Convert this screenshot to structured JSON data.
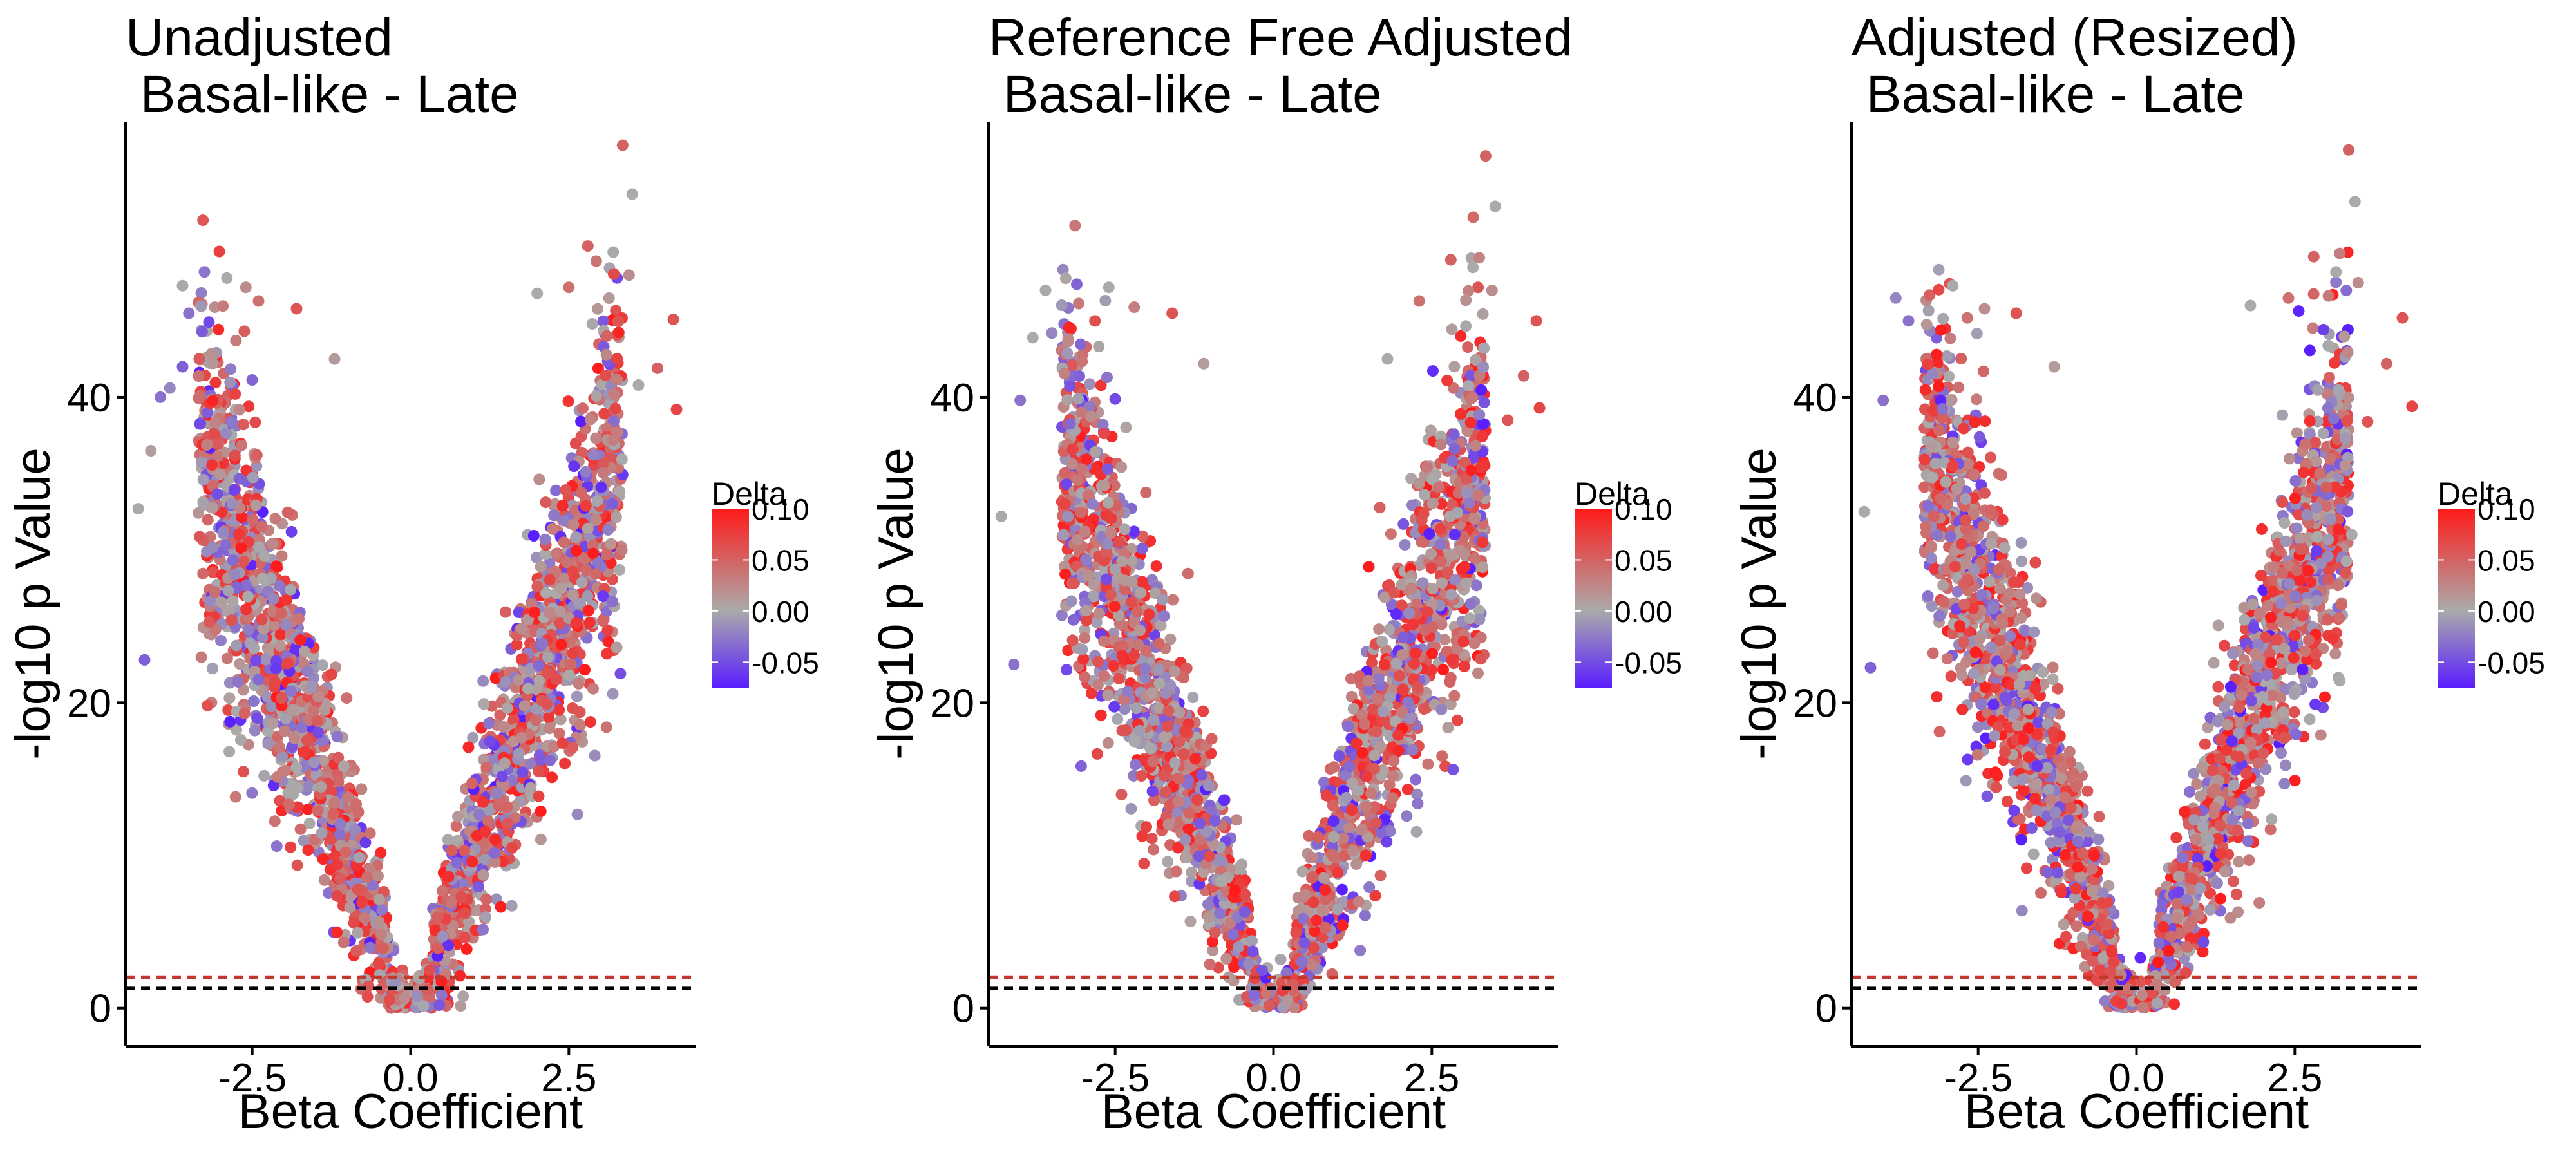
{
  "colors": {
    "delta_low": "#5a1fff",
    "delta_mid": "#aaaaaa",
    "delta_high": "#ff1a1a",
    "line_red": "#c0392b",
    "line_black": "#000000"
  },
  "chart_data": [
    {
      "type": "scatter",
      "title": "Unadjusted\n Basal-like - Late",
      "title_lines": [
        "Unadjusted",
        " Basal-like - Late"
      ],
      "xlabel": "Beta Coefficient",
      "ylabel": "-log10 p Value",
      "xlim": [
        -4.5,
        4.5
      ],
      "ylim": [
        -2.5,
        58
      ],
      "xticks": [
        -2.5,
        0.0,
        2.5
      ],
      "xtick_labels": [
        "-2.5",
        "0.0",
        "2.5"
      ],
      "yticks": [
        0,
        20,
        40
      ],
      "ytick_labels": [
        "0",
        "20",
        "40"
      ],
      "hlines": [
        {
          "y": 2.0,
          "color": "red",
          "style": "dashed"
        },
        {
          "y": 1.3,
          "color": "black",
          "style": "dashed"
        }
      ],
      "legend": {
        "title": "Delta",
        "tick_labels": [
          "0.10",
          "0.05",
          "0.00",
          "-0.05"
        ],
        "tick_values": [
          0.1,
          0.05,
          0.0,
          -0.05
        ],
        "range": [
          -0.075,
          0.1
        ],
        "placement": "right"
      },
      "grid": false,
      "volcano": {
        "seed": 11,
        "n": 2600
      },
      "outliers": [
        {
          "x": -4.3,
          "y": 32.7,
          "d": 0.0
        },
        {
          "x": -4.2,
          "y": 22.8,
          "d": -0.04
        },
        {
          "x": -4.1,
          "y": 36.5,
          "d": 0.01
        },
        {
          "x": -3.95,
          "y": 40.0,
          "d": -0.03
        },
        {
          "x": -3.8,
          "y": 40.6,
          "d": -0.02
        },
        {
          "x": -3.6,
          "y": 47.3,
          "d": 0.0
        },
        {
          "x": -3.5,
          "y": 45.5,
          "d": -0.03
        },
        {
          "x": -3.6,
          "y": 42.0,
          "d": -0.04
        },
        {
          "x": -2.9,
          "y": 47.8,
          "d": 0.0
        },
        {
          "x": -2.6,
          "y": 47.2,
          "d": 0.02
        },
        {
          "x": -2.4,
          "y": 46.3,
          "d": 0.04
        },
        {
          "x": -1.8,
          "y": 45.8,
          "d": 0.06
        },
        {
          "x": -1.2,
          "y": 42.5,
          "d": 0.01
        },
        {
          "x": 2.0,
          "y": 46.8,
          "d": 0.0
        },
        {
          "x": 2.5,
          "y": 47.2,
          "d": 0.04
        },
        {
          "x": 2.8,
          "y": 49.9,
          "d": 0.05
        },
        {
          "x": 3.2,
          "y": 49.5,
          "d": 0.0
        },
        {
          "x": 3.35,
          "y": 56.5,
          "d": 0.05
        },
        {
          "x": 3.5,
          "y": 53.3,
          "d": 0.0
        },
        {
          "x": 3.45,
          "y": 48.0,
          "d": 0.02
        },
        {
          "x": 3.9,
          "y": 41.9,
          "d": 0.05
        },
        {
          "x": 4.15,
          "y": 45.1,
          "d": 0.06
        },
        {
          "x": 4.2,
          "y": 39.2,
          "d": 0.07
        },
        {
          "x": 3.6,
          "y": 40.8,
          "d": 0.0
        },
        {
          "x": 3.3,
          "y": 28.7,
          "d": 0.0
        },
        {
          "x": 3.1,
          "y": 23.2,
          "d": 0.08
        }
      ]
    },
    {
      "type": "scatter",
      "title": "Reference Free Adjusted\n Basal-like - Late",
      "title_lines": [
        "Reference Free Adjusted",
        " Basal-like - Late"
      ],
      "xlabel": "Beta Coefficient",
      "ylabel": "-log10 p Value",
      "xlim": [
        -4.5,
        4.5
      ],
      "ylim": [
        -2.5,
        58
      ],
      "xticks": [
        -2.5,
        0.0,
        2.5
      ],
      "xtick_labels": [
        "-2.5",
        "0.0",
        "2.5"
      ],
      "yticks": [
        0,
        20,
        40
      ],
      "ytick_labels": [
        "0",
        "20",
        "40"
      ],
      "hlines": [
        {
          "y": 2.0,
          "color": "red",
          "style": "dashed"
        },
        {
          "y": 1.3,
          "color": "black",
          "style": "dashed"
        }
      ],
      "legend": {
        "title": "Delta",
        "tick_labels": [
          "0.10",
          "0.05",
          "0.00",
          "-0.05"
        ],
        "tick_values": [
          0.1,
          0.05,
          0.0,
          -0.05
        ],
        "range": [
          -0.075,
          0.1
        ],
        "placement": "right"
      },
      "grid": false,
      "volcano": {
        "seed": 23,
        "n": 2600
      },
      "outliers": [
        {
          "x": -4.3,
          "y": 32.2,
          "d": 0.0
        },
        {
          "x": -4.1,
          "y": 22.5,
          "d": -0.03
        },
        {
          "x": -4.0,
          "y": 39.8,
          "d": -0.03
        },
        {
          "x": -3.8,
          "y": 43.9,
          "d": 0.0
        },
        {
          "x": -3.6,
          "y": 47.0,
          "d": 0.0
        },
        {
          "x": -3.5,
          "y": 44.2,
          "d": -0.02
        },
        {
          "x": -2.6,
          "y": 47.2,
          "d": 0.0
        },
        {
          "x": -2.2,
          "y": 45.9,
          "d": 0.03
        },
        {
          "x": -1.6,
          "y": 45.5,
          "d": 0.06
        },
        {
          "x": -1.1,
          "y": 42.2,
          "d": 0.01
        },
        {
          "x": 1.8,
          "y": 42.5,
          "d": 0.0
        },
        {
          "x": 2.3,
          "y": 46.3,
          "d": 0.04
        },
        {
          "x": 2.8,
          "y": 49.0,
          "d": 0.05
        },
        {
          "x": 3.15,
          "y": 48.5,
          "d": 0.0
        },
        {
          "x": 3.35,
          "y": 55.8,
          "d": 0.05
        },
        {
          "x": 3.5,
          "y": 52.5,
          "d": 0.0
        },
        {
          "x": 3.45,
          "y": 47.0,
          "d": 0.02
        },
        {
          "x": 3.95,
          "y": 41.4,
          "d": 0.05
        },
        {
          "x": 4.15,
          "y": 45.0,
          "d": 0.06
        },
        {
          "x": 4.2,
          "y": 39.3,
          "d": 0.07
        },
        {
          "x": 3.7,
          "y": 38.5,
          "d": 0.06
        },
        {
          "x": 3.3,
          "y": 30.5,
          "d": 0.08
        },
        {
          "x": 3.0,
          "y": 24.0,
          "d": 0.08
        }
      ]
    },
    {
      "type": "scatter",
      "title": "Adjusted (Resized)\n Basal-like - Late",
      "title_lines": [
        "Adjusted (Resized)",
        " Basal-like - Late"
      ],
      "xlabel": "Beta Coefficient",
      "ylabel": "-log10 p Value",
      "xlim": [
        -4.5,
        4.5
      ],
      "ylim": [
        -2.5,
        58
      ],
      "xticks": [
        -2.5,
        0.0,
        2.5
      ],
      "xtick_labels": [
        "-2.5",
        "0.0",
        "2.5"
      ],
      "yticks": [
        0,
        20,
        40
      ],
      "ytick_labels": [
        "0",
        "20",
        "40"
      ],
      "hlines": [
        {
          "y": 2.0,
          "color": "red",
          "style": "dashed"
        },
        {
          "y": 1.3,
          "color": "black",
          "style": "dashed"
        }
      ],
      "legend": {
        "title": "Delta",
        "tick_labels": [
          "0.10",
          "0.05",
          "0.00",
          "-0.05"
        ],
        "tick_values": [
          0.1,
          0.05,
          0.0,
          -0.05
        ],
        "range": [
          -0.075,
          0.1
        ],
        "placement": "right"
      },
      "grid": false,
      "volcano": {
        "seed": 37,
        "n": 2600
      },
      "outliers": [
        {
          "x": -4.3,
          "y": 32.5,
          "d": 0.0
        },
        {
          "x": -4.2,
          "y": 22.3,
          "d": -0.04
        },
        {
          "x": -4.0,
          "y": 39.8,
          "d": -0.03
        },
        {
          "x": -3.8,
          "y": 46.5,
          "d": -0.02
        },
        {
          "x": -3.6,
          "y": 45.0,
          "d": -0.03
        },
        {
          "x": -2.9,
          "y": 47.3,
          "d": 0.0
        },
        {
          "x": -2.4,
          "y": 45.8,
          "d": 0.02
        },
        {
          "x": -1.9,
          "y": 45.5,
          "d": 0.06
        },
        {
          "x": -1.3,
          "y": 42.0,
          "d": 0.01
        },
        {
          "x": 1.8,
          "y": 46.0,
          "d": 0.0
        },
        {
          "x": 2.4,
          "y": 46.5,
          "d": 0.04
        },
        {
          "x": 2.8,
          "y": 49.2,
          "d": 0.05
        },
        {
          "x": 3.15,
          "y": 48.2,
          "d": 0.0
        },
        {
          "x": 3.35,
          "y": 56.2,
          "d": 0.05
        },
        {
          "x": 3.45,
          "y": 52.8,
          "d": 0.0
        },
        {
          "x": 3.5,
          "y": 47.5,
          "d": 0.02
        },
        {
          "x": 3.95,
          "y": 42.2,
          "d": 0.05
        },
        {
          "x": 4.2,
          "y": 45.2,
          "d": 0.06
        },
        {
          "x": 4.35,
          "y": 39.4,
          "d": 0.07
        },
        {
          "x": 3.65,
          "y": 38.4,
          "d": 0.06
        },
        {
          "x": 3.4,
          "y": 31.0,
          "d": 0.0
        },
        {
          "x": 3.1,
          "y": 24.2,
          "d": 0.08
        }
      ]
    }
  ]
}
